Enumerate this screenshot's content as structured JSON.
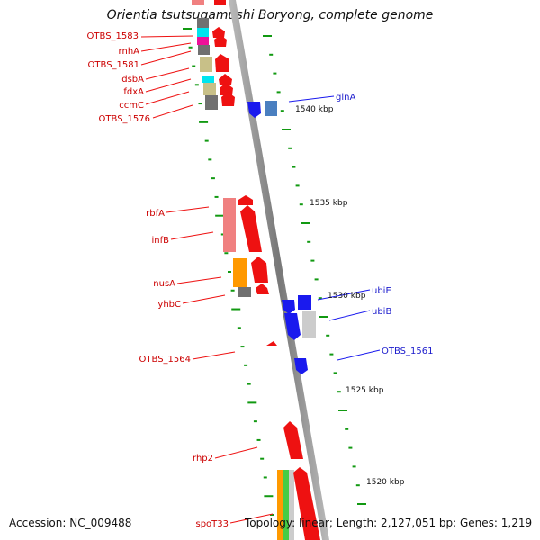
{
  "title": "Orientia tsutsugamushi Boryong, complete genome",
  "footer": {
    "accession": "Accession: NC_009488",
    "summary": "Topology: linear; Length: 2,127,051 bp; Genes: 1,219"
  },
  "colors": {
    "forward_gene": "#ee1111",
    "reverse_gene": "#1a1aee",
    "pink_feature": "#f08080",
    "orange_feature": "#ff9900",
    "olive_feature": "#c8c088",
    "gray_feature": "#707070",
    "cyan_feature": "#00e5ee",
    "magenta_feature": "#ee1199",
    "light_blue_feature": "#4a7fc0",
    "light_gray_feature": "#cccccc",
    "green_feature": "#44cc44",
    "axis": "#888888",
    "ticks": "#119911"
  },
  "genes_left": [
    {
      "label": "OTBS_1583"
    },
    {
      "label": "rnhA"
    },
    {
      "label": "OTBS_1581"
    },
    {
      "label": "dsbA"
    },
    {
      "label": "fdxA"
    },
    {
      "label": "ccmC"
    },
    {
      "label": "OTBS_1576"
    },
    {
      "label": "rbfA"
    },
    {
      "label": "infB"
    },
    {
      "label": "nusA"
    },
    {
      "label": "yhbC"
    },
    {
      "label": "OTBS_1564"
    },
    {
      "label": "rhp2"
    },
    {
      "label": "spoT33"
    }
  ],
  "genes_right": [
    {
      "label": "glnA"
    },
    {
      "label": "ubiE"
    },
    {
      "label": "ubiB"
    },
    {
      "label": "OTBS_1561"
    }
  ],
  "kbp_labels": [
    "1540 kbp",
    "1535 kbp",
    "1530 kbp",
    "1525 kbp",
    "1520 kbp"
  ]
}
